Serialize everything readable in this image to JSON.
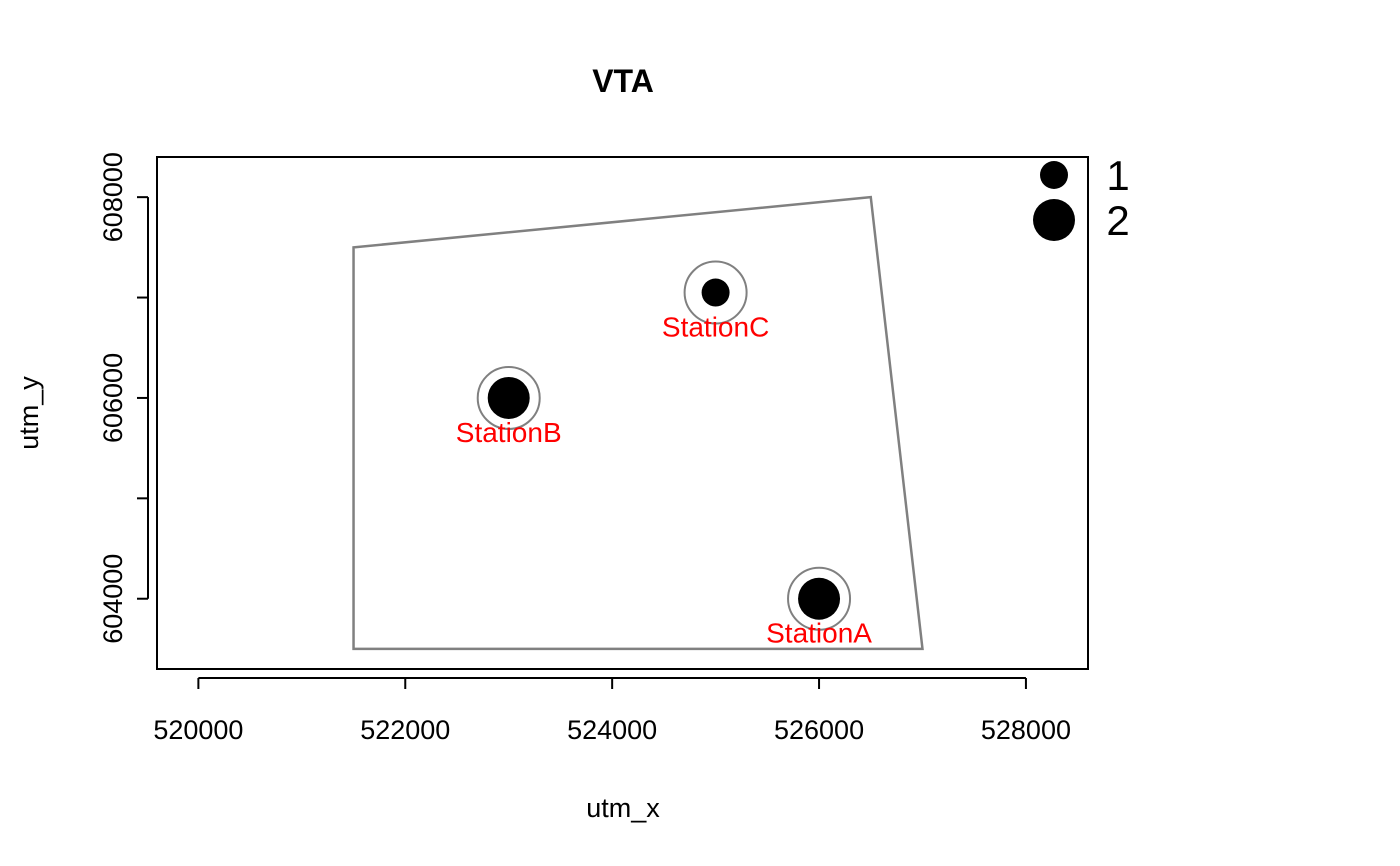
{
  "chart_data": {
    "type": "scatter",
    "title": "VTA",
    "xlabel": "utm_x",
    "ylabel": "utm_y",
    "xlim": [
      519600,
      528600
    ],
    "ylim": [
      603300,
      608400
    ],
    "x_ticks": [
      520000,
      522000,
      524000,
      526000,
      528000
    ],
    "x_tick_labels": [
      "520000",
      "522000",
      "524000",
      "526000",
      "528000"
    ],
    "y_ticks": [
      604000,
      605000,
      606000,
      607000,
      608000
    ],
    "y_tick_labels": [
      "604000",
      "",
      "606000",
      "",
      "608000"
    ],
    "grid": false,
    "legend_position": "top-right",
    "polygon": {
      "color": "#808080",
      "vertices": [
        [
          521500,
          603500
        ],
        [
          527000,
          603500
        ],
        [
          526500,
          608000
        ],
        [
          521500,
          607500
        ]
      ]
    },
    "points": [
      {
        "label": "StationA",
        "x": 526000,
        "y": 604000,
        "size_class": 2
      },
      {
        "label": "StationB",
        "x": 523000,
        "y": 606000,
        "size_class": 2
      },
      {
        "label": "StationC",
        "x": 525000,
        "y": 607050,
        "size_class": 1
      }
    ],
    "label_color": "#ff0000",
    "point_color": "#000000",
    "ring_color": "#808080",
    "legend": [
      {
        "label": "1",
        "size_class": 1
      },
      {
        "label": "2",
        "size_class": 2
      }
    ]
  }
}
